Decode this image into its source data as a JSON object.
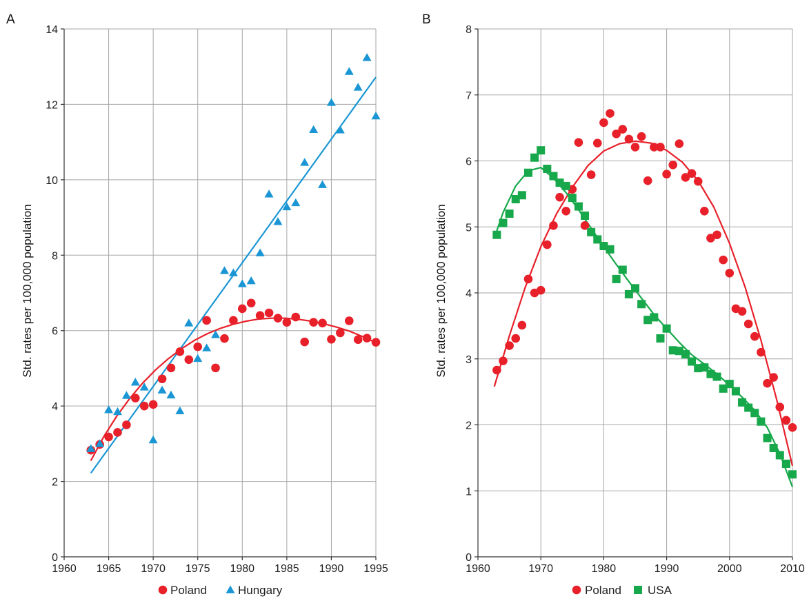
{
  "chart_data": [
    {
      "panel": "A",
      "type": "scatter",
      "ylabel": "Std. rates per 100,000 population",
      "xlabel": "",
      "xlim": [
        1960,
        1995
      ],
      "ylim": [
        0,
        14
      ],
      "xticks": [
        1960,
        1965,
        1970,
        1975,
        1980,
        1985,
        1990,
        1995
      ],
      "yticks": [
        0,
        2,
        4,
        6,
        8,
        10,
        12,
        14
      ],
      "grid": true,
      "legend_position": "bottom",
      "series": [
        {
          "name": "Poland",
          "marker": "circle",
          "color": "#e8202a",
          "x": [
            1963,
            1964,
            1965,
            1966,
            1967,
            1968,
            1969,
            1970,
            1971,
            1972,
            1973,
            1974,
            1975,
            1976,
            1977,
            1978,
            1979,
            1980,
            1981,
            1982,
            1983,
            1984,
            1985,
            1986,
            1987,
            1988,
            1989,
            1990,
            1991,
            1992,
            1993,
            1994,
            1995
          ],
          "y": [
            2.83,
            2.98,
            3.18,
            3.3,
            3.5,
            4.21,
            4.0,
            4.04,
            4.72,
            5.01,
            5.44,
            5.23,
            5.57,
            6.27,
            5.01,
            5.79,
            6.27,
            6.58,
            6.73,
            6.4,
            6.47,
            6.33,
            6.22,
            6.36,
            5.7,
            6.22,
            6.2,
            5.77,
            5.94,
            6.26,
            5.76,
            5.8,
            5.69
          ],
          "trend": "curve",
          "trend_y": [
            2.55,
            3.19,
            3.73,
            4.2,
            4.61,
            4.96,
            5.26,
            5.52,
            5.74,
            5.92,
            6.06,
            6.17,
            6.25,
            6.31,
            6.33,
            6.33,
            6.3,
            6.25,
            6.18,
            6.09,
            5.98,
            5.84,
            5.68
          ]
        },
        {
          "name": "Hungary",
          "marker": "triangle",
          "color": "#1a96d4",
          "x": [
            1963,
            1964,
            1965,
            1966,
            1967,
            1968,
            1969,
            1970,
            1971,
            1972,
            1973,
            1974,
            1975,
            1976,
            1977,
            1978,
            1979,
            1980,
            1981,
            1982,
            1983,
            1984,
            1985,
            1986,
            1987,
            1988,
            1989,
            1990,
            1991,
            1992,
            1993,
            1994,
            1995
          ],
          "y": [
            2.87,
            3.0,
            3.9,
            3.85,
            4.28,
            4.63,
            4.5,
            3.1,
            4.42,
            4.29,
            3.87,
            6.2,
            5.26,
            5.54,
            5.89,
            7.59,
            7.53,
            7.24,
            7.32,
            8.06,
            9.62,
            8.89,
            9.28,
            9.39,
            10.46,
            11.33,
            9.87,
            12.05,
            11.32,
            12.87,
            12.45,
            13.24,
            11.69
          ],
          "trend": "linear",
          "trend_x": [
            1963,
            1995
          ],
          "trend_y": [
            2.22,
            12.72
          ]
        }
      ]
    },
    {
      "panel": "B",
      "type": "scatter",
      "ylabel": "Std. rates per 100,000 population",
      "xlabel": "",
      "xlim": [
        1960,
        2010
      ],
      "ylim": [
        0,
        8
      ],
      "xticks": [
        1960,
        1970,
        1980,
        1990,
        2000,
        2010
      ],
      "yticks": [
        0,
        1,
        2,
        3,
        4,
        5,
        6,
        7,
        8
      ],
      "grid": true,
      "legend_position": "bottom",
      "series": [
        {
          "name": "Poland",
          "marker": "circle",
          "color": "#e8202a",
          "x": [
            1963,
            1964,
            1965,
            1966,
            1967,
            1968,
            1969,
            1970,
            1971,
            1972,
            1973,
            1974,
            1975,
            1976,
            1977,
            1978,
            1979,
            1980,
            1981,
            1982,
            1983,
            1984,
            1985,
            1986,
            1987,
            1988,
            1989,
            1990,
            1991,
            1992,
            1993,
            1994,
            1995,
            1996,
            1997,
            1998,
            1999,
            2000,
            2001,
            2002,
            2003,
            2004,
            2005,
            2006,
            2007,
            2008,
            2009,
            2010
          ],
          "y": [
            2.83,
            2.97,
            3.2,
            3.31,
            3.51,
            4.21,
            4.0,
            4.04,
            4.73,
            5.02,
            5.45,
            5.24,
            5.57,
            6.28,
            5.02,
            5.79,
            6.27,
            6.58,
            6.72,
            6.41,
            6.48,
            6.33,
            6.21,
            6.37,
            5.7,
            6.21,
            6.21,
            5.8,
            5.94,
            6.26,
            5.75,
            5.81,
            5.69,
            5.24,
            4.83,
            4.88,
            4.5,
            4.3,
            3.76,
            3.72,
            3.53,
            3.34,
            3.1,
            2.63,
            2.72,
            2.27,
            2.07,
            1.96
          ],
          "trend": "curve",
          "trend_x": [
            1962.6,
            1965,
            1967.5,
            1970,
            1972.5,
            1975,
            1977.5,
            1980,
            1982.5,
            1985,
            1987.5,
            1990,
            1992.5,
            1995,
            1997.5,
            2000,
            2002.5,
            2005,
            2007.5,
            2010
          ],
          "trend_y": [
            2.58,
            3.35,
            4.08,
            4.7,
            5.2,
            5.6,
            5.93,
            6.15,
            6.26,
            6.3,
            6.27,
            6.16,
            5.98,
            5.7,
            5.3,
            4.75,
            4.08,
            3.28,
            2.38,
            1.38
          ]
        },
        {
          "name": "USA",
          "marker": "square",
          "color": "#16a84a",
          "x": [
            1963,
            1964,
            1965,
            1966,
            1967,
            1968,
            1969,
            1970,
            1971,
            1972,
            1973,
            1974,
            1975,
            1976,
            1977,
            1978,
            1979,
            1980,
            1981,
            1982,
            1983,
            1984,
            1985,
            1986,
            1987,
            1988,
            1989,
            1990,
            1991,
            1992,
            1993,
            1994,
            1995,
            1996,
            1997,
            1998,
            1999,
            2000,
            2001,
            2002,
            2003,
            2004,
            2005,
            2006,
            2007,
            2008,
            2009,
            2010
          ],
          "y": [
            4.88,
            5.06,
            5.2,
            5.42,
            5.48,
            5.82,
            6.05,
            6.16,
            5.88,
            5.77,
            5.67,
            5.62,
            5.44,
            5.31,
            5.17,
            4.92,
            4.81,
            4.71,
            4.66,
            4.21,
            4.35,
            3.98,
            4.07,
            3.83,
            3.59,
            3.63,
            3.31,
            3.46,
            3.13,
            3.12,
            3.07,
            2.96,
            2.86,
            2.87,
            2.77,
            2.73,
            2.55,
            2.62,
            2.51,
            2.34,
            2.26,
            2.18,
            2.05,
            1.8,
            1.65,
            1.54,
            1.41,
            1.25
          ],
          "trend": "curve",
          "trend_x": [
            1962.6,
            1964,
            1966,
            1968,
            1970,
            1972,
            1974,
            1976,
            1978,
            1980,
            1982,
            1984,
            1986,
            1988,
            1990,
            1992,
            1994,
            1996,
            1998,
            2000,
            2002,
            2004,
            2006,
            2008,
            2010
          ],
          "trend_y": [
            4.83,
            5.22,
            5.62,
            5.85,
            5.9,
            5.74,
            5.52,
            5.26,
            4.98,
            4.7,
            4.43,
            4.17,
            3.92,
            3.67,
            3.46,
            3.25,
            3.06,
            2.92,
            2.77,
            2.6,
            2.42,
            2.22,
            1.96,
            1.56,
            1.06
          ]
        }
      ]
    }
  ]
}
